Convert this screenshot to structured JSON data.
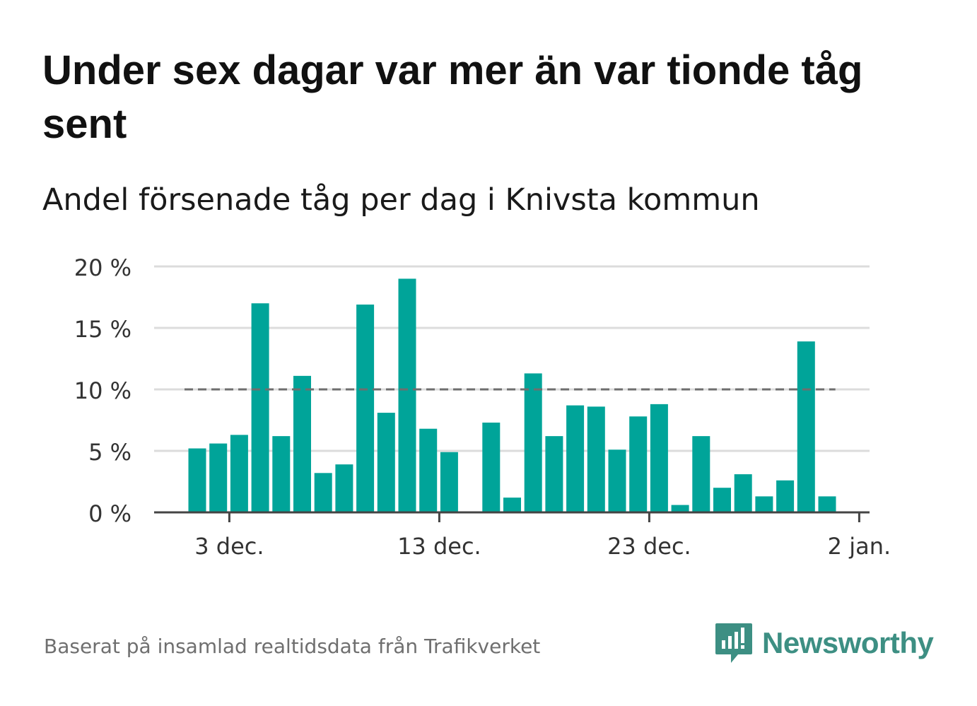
{
  "title": "Under sex dagar var mer än var tionde tåg sent",
  "subtitle": "Andel försenade tåg per dag i Knivsta kommun",
  "footer": "Baserat på insamlad realtidsdata från Trafikverket",
  "logo": {
    "name": "Newsworthy",
    "icon": "newsworthy-bar-chart-icon",
    "color": "#3d8f83"
  },
  "colors": {
    "bar": "#00a499",
    "reference_line": "#6e6e6e",
    "grid": "#dcdcdc",
    "axis": "#444444"
  },
  "chart_data": {
    "type": "bar",
    "x": [
      "2023-12-01",
      "2023-12-02",
      "2023-12-03",
      "2023-12-04",
      "2023-12-05",
      "2023-12-06",
      "2023-12-07",
      "2023-12-08",
      "2023-12-09",
      "2023-12-10",
      "2023-12-11",
      "2023-12-12",
      "2023-12-13",
      "2023-12-14",
      "2023-12-15",
      "2023-12-16",
      "2023-12-17",
      "2023-12-18",
      "2023-12-19",
      "2023-12-20",
      "2023-12-21",
      "2023-12-22",
      "2023-12-23",
      "2023-12-24",
      "2023-12-25",
      "2023-12-26",
      "2023-12-27",
      "2023-12-28",
      "2023-12-29",
      "2023-12-30",
      "2023-12-31",
      "2024-01-01"
    ],
    "values": [
      5.2,
      5.6,
      6.3,
      17.0,
      6.2,
      11.1,
      3.2,
      3.9,
      16.9,
      8.1,
      19.0,
      6.8,
      4.9,
      null,
      7.3,
      1.2,
      11.3,
      6.2,
      8.7,
      8.6,
      5.1,
      7.8,
      8.8,
      0.6,
      6.2,
      2.0,
      3.1,
      1.3,
      2.6,
      13.9,
      1.3,
      null
    ],
    "reference_line": {
      "value": 10,
      "style": "dashed"
    },
    "ylim": [
      0,
      20
    ],
    "yticks": [
      0,
      5,
      10,
      15,
      20
    ],
    "ytick_labels": [
      "0 %",
      "5 %",
      "10 %",
      "15 %",
      "20 %"
    ],
    "xticks": [
      "2023-12-03",
      "2023-12-13",
      "2023-12-23",
      "2024-01-02"
    ],
    "xtick_labels": [
      "3 dec.",
      "13 dec.",
      "23 dec.",
      "2 jan."
    ],
    "grid": true,
    "xlabel": "",
    "ylabel": ""
  }
}
